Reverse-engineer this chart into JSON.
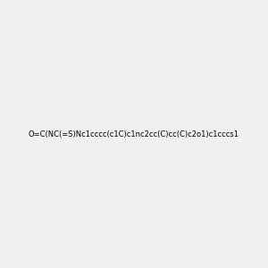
{
  "smiles": "O=C(NC(=S)Nc1cccc(c1C)c1nc2cc(C)cc(C)c2o1)c1cccs1",
  "image_size": 300,
  "background_color": "#f0f0f0",
  "atom_colors": {
    "N": "blue",
    "O": "red",
    "S": "yellow"
  }
}
